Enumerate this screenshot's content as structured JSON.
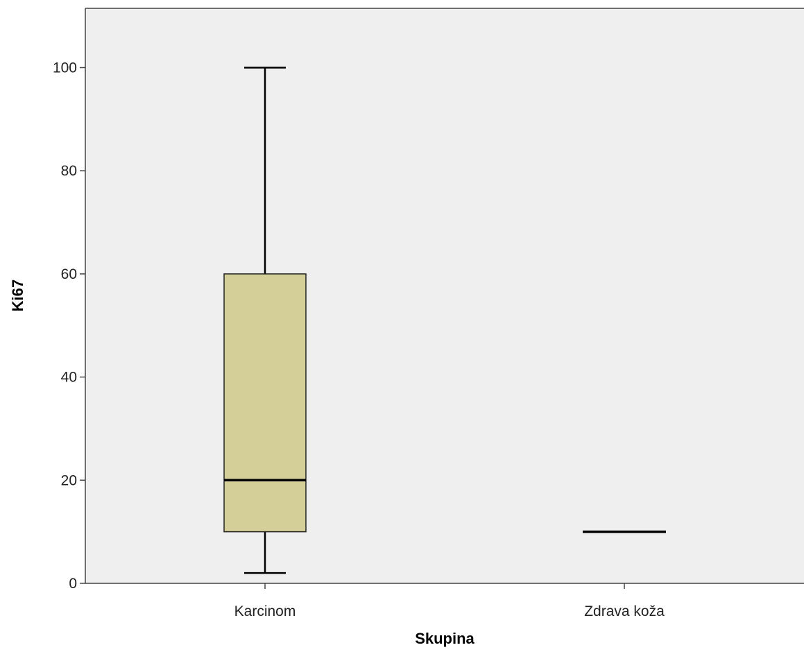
{
  "chart_data": {
    "type": "boxplot",
    "xlabel": "Skupina",
    "ylabel": "Ki67",
    "categories": [
      "Karcinom",
      "Zdrava koža"
    ],
    "boxes": [
      {
        "category": "Karcinom",
        "min": 2,
        "q1": 10,
        "median": 20,
        "q3": 60,
        "max": 100
      },
      {
        "category": "Zdrava koža",
        "min": 10,
        "q1": 10,
        "median": 10,
        "q3": 10,
        "max": 10
      }
    ],
    "yticks": [
      0,
      20,
      40,
      60,
      80,
      100
    ],
    "ylim": [
      0,
      111.5
    ],
    "grid": false,
    "colors": {
      "plot_background": "#efefef",
      "box_fill": "#d4ce99",
      "line": "#000000"
    }
  }
}
